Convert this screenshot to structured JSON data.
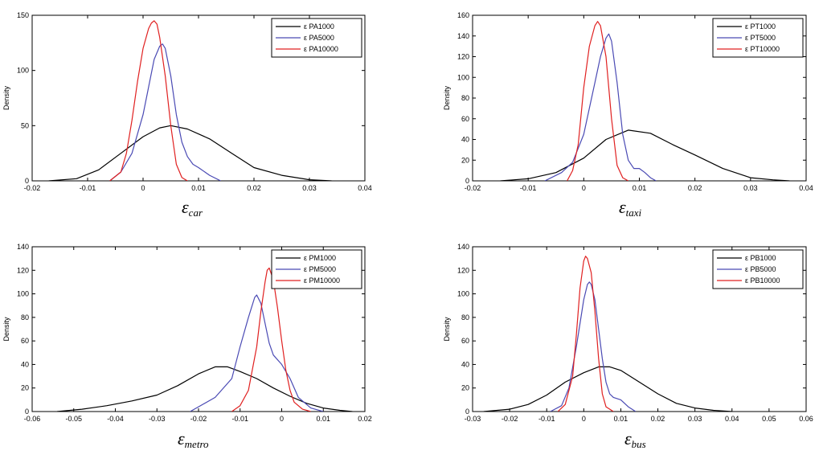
{
  "chart_data": [
    {
      "type": "line",
      "title": "",
      "xlabel": "ε",
      "xlabel_sub": "car",
      "ylabel": "Density",
      "xlim": [
        -0.02,
        0.04
      ],
      "ylim": [
        0,
        150
      ],
      "xticks": [
        -0.02,
        -0.01,
        0,
        0.01,
        0.02,
        0.03,
        0.04
      ],
      "xtick_labels": [
        "-0.02",
        "-0.01",
        "0",
        "0.01",
        "0.02",
        "0.03",
        "0.04"
      ],
      "yticks": [
        0,
        50,
        100,
        150
      ],
      "ytick_labels": [
        "0",
        "50",
        "100",
        "150"
      ],
      "legend": "top-right",
      "series": [
        {
          "name": "ε PA1000",
          "color": "#000000",
          "x": [
            -0.017,
            -0.012,
            -0.008,
            -0.004,
            0.0,
            0.003,
            0.005,
            0.008,
            0.012,
            0.016,
            0.02,
            0.025,
            0.03,
            0.034
          ],
          "y": [
            0,
            2,
            10,
            25,
            40,
            48,
            50,
            47,
            38,
            25,
            12,
            5,
            1,
            0
          ]
        },
        {
          "name": "ε PA5000",
          "color": "#4a4ab4",
          "x": [
            -0.006,
            -0.004,
            -0.002,
            0.0,
            0.001,
            0.002,
            0.003,
            0.0035,
            0.004,
            0.005,
            0.006,
            0.007,
            0.008,
            0.009,
            0.01,
            0.012,
            0.014
          ],
          "y": [
            0,
            8,
            25,
            60,
            85,
            110,
            122,
            124,
            120,
            95,
            60,
            35,
            22,
            15,
            12,
            5,
            0
          ]
        },
        {
          "name": "ε PA10000",
          "color": "#e02020",
          "x": [
            -0.006,
            -0.004,
            -0.003,
            -0.002,
            -0.001,
            0.0,
            0.001,
            0.0015,
            0.002,
            0.0025,
            0.003,
            0.004,
            0.005,
            0.006,
            0.007,
            0.008
          ],
          "y": [
            0,
            8,
            25,
            55,
            90,
            120,
            138,
            143,
            145,
            142,
            130,
            95,
            50,
            15,
            3,
            0
          ]
        }
      ]
    },
    {
      "type": "line",
      "title": "",
      "xlabel": "ε",
      "xlabel_sub": "taxi",
      "ylabel": "Density",
      "xlim": [
        -0.02,
        0.04
      ],
      "ylim": [
        0,
        160
      ],
      "xticks": [
        -0.02,
        -0.01,
        0,
        0.01,
        0.02,
        0.03,
        0.04
      ],
      "xtick_labels": [
        "-0.02",
        "-0.01",
        "0",
        "0.01",
        "0.02",
        "0.03",
        "0.04"
      ],
      "yticks": [
        0,
        20,
        40,
        60,
        80,
        100,
        120,
        140,
        160
      ],
      "ytick_labels": [
        "0",
        "20",
        "40",
        "60",
        "80",
        "100",
        "120",
        "140",
        "160"
      ],
      "legend": "top-right",
      "series": [
        {
          "name": "ε PT1000",
          "color": "#000000",
          "x": [
            -0.015,
            -0.01,
            -0.005,
            0.0,
            0.004,
            0.008,
            0.012,
            0.016,
            0.02,
            0.025,
            0.03,
            0.034,
            0.037
          ],
          "y": [
            0,
            2,
            8,
            22,
            40,
            49,
            46,
            35,
            25,
            12,
            3,
            1,
            0
          ]
        },
        {
          "name": "ε PT5000",
          "color": "#4a4ab4",
          "x": [
            -0.007,
            -0.004,
            -0.002,
            0.0,
            0.002,
            0.003,
            0.004,
            0.0045,
            0.005,
            0.006,
            0.007,
            0.008,
            0.009,
            0.01,
            0.011,
            0.012,
            0.013
          ],
          "y": [
            0,
            8,
            18,
            45,
            95,
            120,
            138,
            142,
            135,
            95,
            45,
            20,
            12,
            12,
            8,
            3,
            0
          ]
        },
        {
          "name": "ε PT10000",
          "color": "#e02020",
          "x": [
            -0.003,
            -0.002,
            -0.001,
            0.0,
            0.001,
            0.002,
            0.0025,
            0.003,
            0.004,
            0.005,
            0.006,
            0.007,
            0.008
          ],
          "y": [
            0,
            10,
            35,
            90,
            130,
            150,
            154,
            150,
            120,
            60,
            15,
            3,
            0
          ]
        }
      ]
    },
    {
      "type": "line",
      "title": "",
      "xlabel": "ε",
      "xlabel_sub": "metro",
      "ylabel": "Density",
      "xlim": [
        -0.06,
        0.02
      ],
      "ylim": [
        0,
        140
      ],
      "xticks": [
        -0.06,
        -0.05,
        -0.04,
        -0.03,
        -0.02,
        -0.01,
        0,
        0.01,
        0.02
      ],
      "xtick_labels": [
        "-0.06",
        "-0.05",
        "-0.04",
        "-0.03",
        "-0.02",
        "-0.01",
        "0",
        "0.01",
        "0.02"
      ],
      "yticks": [
        0,
        20,
        40,
        60,
        80,
        100,
        120,
        140
      ],
      "ytick_labels": [
        "0",
        "20",
        "40",
        "60",
        "80",
        "100",
        "120",
        "140"
      ],
      "legend": "top-right",
      "series": [
        {
          "name": "ε PM1000",
          "color": "#000000",
          "x": [
            -0.054,
            -0.048,
            -0.042,
            -0.036,
            -0.03,
            -0.025,
            -0.02,
            -0.016,
            -0.013,
            -0.01,
            -0.006,
            -0.002,
            0.002,
            0.006,
            0.01,
            0.014,
            0.017
          ],
          "y": [
            0,
            2,
            5,
            9,
            14,
            22,
            32,
            38,
            38,
            34,
            28,
            20,
            13,
            7,
            3,
            1,
            0
          ]
        },
        {
          "name": "ε PM5000",
          "color": "#4a4ab4",
          "x": [
            -0.022,
            -0.02,
            -0.016,
            -0.012,
            -0.01,
            -0.008,
            -0.0065,
            -0.006,
            -0.005,
            -0.004,
            -0.003,
            -0.002,
            0.0,
            0.002,
            0.004,
            0.007,
            0.01
          ],
          "y": [
            0,
            4,
            12,
            28,
            55,
            80,
            97,
            99,
            92,
            75,
            58,
            48,
            40,
            28,
            12,
            3,
            0
          ]
        },
        {
          "name": "ε PM10000",
          "color": "#e02020",
          "x": [
            -0.012,
            -0.01,
            -0.008,
            -0.006,
            -0.005,
            -0.004,
            -0.0035,
            -0.003,
            -0.002,
            -0.001,
            0.0,
            0.001,
            0.002,
            0.003,
            0.005,
            0.007
          ],
          "y": [
            0,
            5,
            18,
            55,
            85,
            110,
            120,
            122,
            112,
            88,
            60,
            35,
            18,
            8,
            2,
            0
          ]
        }
      ]
    },
    {
      "type": "line",
      "title": "",
      "xlabel": "ε",
      "xlabel_sub": "bus",
      "ylabel": "Density",
      "xlim": [
        -0.03,
        0.06
      ],
      "ylim": [
        0,
        140
      ],
      "xticks": [
        -0.03,
        -0.02,
        -0.01,
        0,
        0.01,
        0.02,
        0.03,
        0.04,
        0.05,
        0.06
      ],
      "xtick_labels": [
        "-0.03",
        "-0.02",
        "-0.01",
        "0",
        "0.01",
        "0.02",
        "0.03",
        "0.04",
        "0.05",
        "0.06"
      ],
      "yticks": [
        0,
        20,
        40,
        60,
        80,
        100,
        120,
        140
      ],
      "ytick_labels": [
        "0",
        "20",
        "40",
        "60",
        "80",
        "100",
        "120",
        "140"
      ],
      "legend": "top-right",
      "series": [
        {
          "name": "ε PB1000",
          "color": "#000000",
          "x": [
            -0.027,
            -0.02,
            -0.015,
            -0.01,
            -0.005,
            0.0,
            0.004,
            0.007,
            0.01,
            0.015,
            0.02,
            0.025,
            0.03,
            0.035,
            0.04
          ],
          "y": [
            0,
            2,
            6,
            14,
            25,
            33,
            38,
            38,
            35,
            25,
            15,
            7,
            3,
            1,
            0
          ]
        },
        {
          "name": "ε PB5000",
          "color": "#4a4ab4",
          "x": [
            -0.009,
            -0.006,
            -0.004,
            -0.002,
            0.0,
            0.001,
            0.0015,
            0.002,
            0.003,
            0.004,
            0.005,
            0.006,
            0.007,
            0.008,
            0.01,
            0.012,
            0.014
          ],
          "y": [
            0,
            5,
            20,
            55,
            95,
            108,
            110,
            108,
            95,
            70,
            45,
            25,
            15,
            12,
            10,
            4,
            0
          ]
        },
        {
          "name": "ε PB10000",
          "color": "#e02020",
          "x": [
            -0.007,
            -0.005,
            -0.003,
            -0.002,
            -0.001,
            0.0,
            0.0005,
            0.001,
            0.002,
            0.003,
            0.004,
            0.005,
            0.006,
            0.008
          ],
          "y": [
            0,
            6,
            30,
            65,
            105,
            128,
            132,
            130,
            118,
            85,
            45,
            15,
            4,
            0
          ]
        }
      ]
    }
  ]
}
